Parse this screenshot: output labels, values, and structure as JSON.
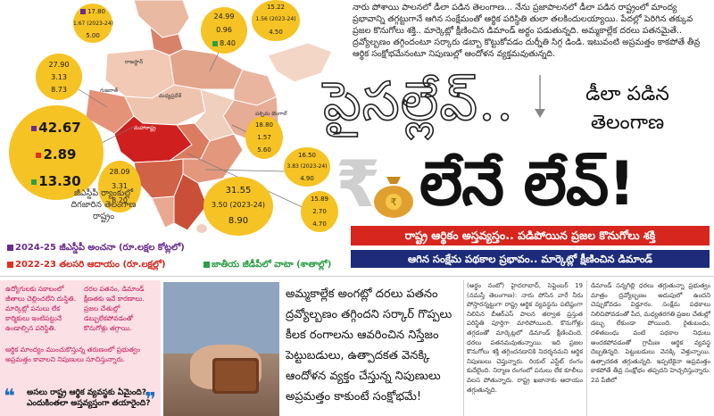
{
  "map": {
    "bubbles": [
      {
        "id": "jk",
        "values": [
          "17.80",
          "1.67 (2023-24)",
          "5.00"
        ]
      },
      {
        "id": "hp",
        "values": [
          "24.99",
          "0.96",
          "8.40"
        ]
      },
      {
        "id": "up",
        "values": [
          "15.22",
          "1.56 (2023-24)",
          "4.50"
        ]
      },
      {
        "id": "gj",
        "values": [
          "27.90",
          "3.13",
          "8.73"
        ]
      },
      {
        "id": "mh",
        "values": [
          "42.67",
          "2.89",
          "13.30"
        ]
      },
      {
        "id": "ka",
        "values": [
          "28.09",
          "3.31",
          "8.20"
        ]
      },
      {
        "id": "tn",
        "values": [
          "31.55",
          "3.50 (2023-24)",
          "8.90"
        ]
      },
      {
        "id": "od",
        "values": [
          "18.80",
          "1.57",
          "5.60"
        ]
      },
      {
        "id": "ap",
        "values": [
          "16.50",
          "3.83 (2023-24)",
          "4.90"
        ]
      },
      {
        "id": "tg",
        "values": [
          "15.89",
          "2.70",
          "4.70"
        ]
      }
    ],
    "labels": {
      "rajasthan": "రాజస్థాన్",
      "mp": "మధ్యప్రదేశ్",
      "maharashtra": "మహారాష్ట్ర",
      "gujarat": "గుజరాత్",
      "wb": "పశ్చిమ బెంగాల్"
    },
    "rank_caption": "జీఎస్డీపీ ర్యాంకుల్లో దిగజారిన తెలంగాణ రాష్ట్రం"
  },
  "intro_text": "నారు పోశాయి పాలనలో డీలా పడిన తెలంగాణ... నేను ప్రజాపాలనలో డీలా పడిన రాష్ట్రంలో మాంద్య ప్రభావాన్ని తగ్గట్టుగానే ఆగిన సంక్షేమంతో ఆర్థిక పరిస్థితి తులా తలకిందులయ్యాయి. పేదల్లో పెరిగిన తక్కువ ప్రజల కొనుగోలు శక్తి.. మార్కెట్లో క్షీణించిన డిమాండ్ అర్థం పడుతున్నది. అమ్మకాల్లేక దరలు పతనమైతే.. ద్రవ్యోల్బణం తగ్గిందంటూ సర్కారు డబ్బా కొట్టుకోవడం దుర్నీతి సిగ్గ డిండి. ఇటువంటి అప్రమత్తం కాకపోతే తీవ్ర ఆర్థిక సంక్షోభమేనంటూ నిపుణుల్లో ఆందోళన వ్యక్తమవుతున్నది.",
  "headline": {
    "line1": "పైసల్లేవ్..",
    "line2": "లేనే లేవ్!",
    "sub": "డీలా పడిన తెలంగాణ",
    "rupee": "₹"
  },
  "banners": {
    "red": "రాష్ట్ర ఆర్థికం అస్తవ్యస్తం.. పడిపోయిన ప్రజల కొనుగోలు శక్తి",
    "blue": "ఆగిన సంక్షేమ పథకాల ప్రభావం.. మార్కెట్లో క్షీణించిన డిమాండ్"
  },
  "legend": {
    "item1": "2024-25 జీఎస్డీపీ అంచనా (రూ.లక్షల కోట్లలో)",
    "item2": "2022-23 తలసరి ఆదాయం (రూ.లక్షల్లో)",
    "item3": "జాతీయ జీడీపీలో వాటా (శాతాల్లో)"
  },
  "colors": {
    "purple": "#6a2c91",
    "red": "#e3301c",
    "green": "#2e9e45",
    "bubble": "#f6c324",
    "banner_red": "#d7261e",
    "banner_blue": "#1d2b7a"
  },
  "pink_column": {
    "p1": "ఉద్యోగులకు సకాలంలో జీతాలు చెల్లించలేని దుస్థితి. మార్కెట్లో పనులు లేక కార్మికులు ఇంటిపట్టునే ఉండాల్సిన పరిస్థితి.",
    "p2": "దరల పతనం, డిమాండ్ క్షీణతకు ఇవే కారణాలు. ప్రజల చేతుల్లో డబ్బులేకపోవడంతో కొనుగోళ్లు తగ్గాయి.",
    "p3": "ఆర్థిక మాంద్యం ముంచుకొస్తున్న తరుణంలో ప్రభుత్వం అప్రమత్తం కావాలని నిపుణులు సూచిస్తున్నారు.",
    "quote": "అసలు రాష్ట్ర ఆర్థిక వ్యవస్థకు ఏమైంది? ఎందుకింతలా అస్తవ్యస్తంగా తయారైంది?"
  },
  "pull_quote": "అమ్మకాల్లేక అంగట్లో దరలు పతనం ద్రవ్యోల్బణం తగ్గిందని సర్కార్ గొప్పలు కీలక రంగాలను ఆవరించిన నిస్తేజం పెట్టుబడులు, ఉత్పాదకత వెనక్కి ఆందోళన వ్యక్తం చేస్తున్న నిపుణులు అప్రమత్తం కాకుంటే సంక్షోభమే!",
  "body": {
    "col1": "(అర్థం నంటో) హైదరాబాద్, సెప్టెంబర్ 19 (నమస్తే తెలంగాణ): నారు పోసిన వారే నీరు పోస్తారన్నట్టుగా రాష్ట్ర ఆర్థిక వ్యవస్థను పటిష్ఠంగా నిలిపిన బీఆర్ఎస్ పాలన తర్వాత ప్రస్తుత పరిస్థితి పూర్తిగా మారిపోయింది. కొనుగోళ్లు తగ్గడంతో మార్కెట్లలో డిమాండ్ క్షీణించింది. ధరలు పతనమవుతున్నాయి. ఇది ప్రజల కొనుగోలు శక్తి తగ్గిందనడానికి నిదర్శనమని ఆర్థిక నిపుణులు చెప్తున్నారు. రియల్ ఎస్టేట్ రంగం కుదేలైంది. నిర్మాణ రంగంలో పనులు లేక కూలీలు వలస పోతున్నారు. రాష్ట్ర ఖజానాకు ఆదాయం తగ్గుతున్నది.",
    "col2": "డిమాండ్ సన్నగిల్లి ధరలు తగ్గుతున్నా ప్రభుత్వం మాత్రం ద్రవ్యోల్బణం అదుపులో ఉందని చెప్పుకోవడం విడ్డూరం. సంక్షేమ పథకాలు నిలిచిపోవడంతో పేద, మధ్యతరగతి ప్రజల చేతుల్లో డబ్బు లేకుండా పోయింది. రైతుబంధు, దళితబంధు వంటి పథకాల నిధులు అందకపోవడంతో గ్రామీణ ఆర్థిక వ్యవస్థ దెబ్బతిన్నది. పెట్టుబడులు వెనక్కి వెళ్తున్నాయి. ఉత్పాదకత తగ్గుతున్నది. ఇప్పటికైనా అప్రమత్తం కాకపోతే తీవ్ర సంక్షోభం తప్పదని హెచ్చరిస్తున్నారు. 2వ పేజీలో"
  }
}
